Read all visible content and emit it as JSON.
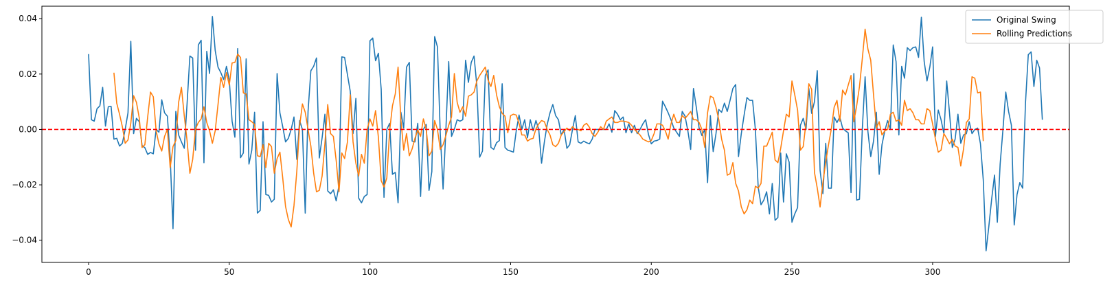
{
  "chart_data": {
    "type": "line",
    "title": "",
    "xlabel": "",
    "ylabel": "",
    "xlim": [
      -16.6,
      348.6
    ],
    "ylim": [
      -0.048,
      0.0445
    ],
    "xticks": [
      0,
      50,
      100,
      150,
      200,
      250,
      300
    ],
    "yticks": [
      -0.04,
      -0.02,
      0.0,
      0.02,
      0.04
    ],
    "ytick_labels": [
      "−0.04",
      "−0.02",
      "0.00",
      "0.02",
      "0.04"
    ],
    "grid": false,
    "legend_position": "top-right",
    "reference_line": {
      "y": 0.0,
      "color": "#ff0000",
      "style": "dashed"
    },
    "series": [
      {
        "name": "Original Swing",
        "color": "#1f77b4",
        "x_start": 0,
        "values": [
          0.0272,
          0.0035,
          0.003,
          0.0075,
          0.0085,
          0.0152,
          0.0012,
          0.0082,
          0.0083,
          -0.0035,
          -0.0032,
          -0.006,
          -0.005,
          0.0,
          0.006,
          0.0318,
          -0.0015,
          0.004,
          0.0028,
          -0.0058,
          -0.0066,
          -0.009,
          -0.0083,
          -0.0088,
          0.0,
          -0.001,
          0.0107,
          0.006,
          0.0048,
          -0.01,
          -0.0358,
          0.0065,
          -0.002,
          -0.0045,
          -0.0068,
          0.0092,
          0.0265,
          0.0258,
          -0.0075,
          0.0305,
          0.0322,
          -0.012,
          0.0282,
          0.0202,
          0.0408,
          0.0285,
          0.0225,
          0.0205,
          0.018,
          0.0228,
          0.0178,
          0.003,
          -0.0028,
          0.0292,
          -0.0102,
          -0.0085,
          0.0255,
          -0.0125,
          -0.0075,
          0.0062,
          -0.0302,
          -0.0292,
          0.0028,
          -0.0235,
          -0.0238,
          -0.0262,
          -0.0252,
          0.0202,
          0.006,
          0.001,
          -0.0045,
          -0.0032,
          0.0,
          0.0045,
          -0.0108,
          0.0032,
          0.0,
          -0.0302,
          0.0065,
          0.0212,
          0.0228,
          0.0258,
          -0.0103,
          -0.003,
          0.0055,
          -0.0222,
          -0.0232,
          -0.0218,
          -0.0258,
          -0.0202,
          0.0262,
          0.026,
          0.0198,
          0.0138,
          -0.0015,
          0.0112,
          -0.0248,
          -0.0265,
          -0.0242,
          -0.0235,
          0.032,
          0.033,
          0.0248,
          0.0275,
          0.0145,
          -0.0245,
          0.0,
          0.0022,
          -0.0162,
          -0.0155,
          -0.0265,
          0.0062,
          0.0005,
          0.0225,
          0.0242,
          -0.0042,
          -0.0045,
          0.0022,
          -0.0242,
          0.0,
          0.0018,
          -0.022,
          -0.0152,
          0.0335,
          0.0298,
          -0.0015,
          -0.0215,
          0.0,
          0.0245,
          -0.0025,
          0.0,
          0.0035,
          0.003,
          0.0035,
          0.025,
          0.017,
          0.0242,
          0.0265,
          0.0158,
          -0.01,
          -0.0078,
          0.0195,
          0.0215,
          -0.0065,
          -0.0072,
          -0.0048,
          -0.004,
          0.0165,
          -0.0065,
          -0.0075,
          -0.0078,
          -0.0082,
          -0.0005,
          0.0052,
          0.0,
          0.0035,
          -0.003,
          0.0035,
          -0.0005,
          0.0032,
          0.0,
          -0.0122,
          -0.0045,
          0.0018,
          0.006,
          0.009,
          0.005,
          0.0035,
          -0.002,
          0.0,
          -0.0068,
          -0.0055,
          0.0,
          0.005,
          -0.0045,
          -0.005,
          -0.0042,
          -0.0048,
          -0.0052,
          -0.0035,
          0.0,
          0.0,
          0.0,
          0.0,
          0.0,
          0.002,
          -0.001,
          0.0068,
          0.0055,
          0.0035,
          0.0045,
          -0.0012,
          0.002,
          -0.0012,
          0.0015,
          -0.0015,
          0.0,
          0.002,
          0.0035,
          -0.0018,
          -0.0052,
          -0.0042,
          -0.004,
          -0.0035,
          0.0102,
          0.0082,
          0.006,
          0.0035,
          0.0005,
          -0.001,
          -0.0025,
          0.0065,
          0.0048,
          -0.0005,
          -0.0072,
          0.0148,
          0.008,
          0.0005,
          -0.0022,
          0.0,
          -0.0192,
          0.005,
          -0.008,
          -0.0015,
          0.0072,
          0.0062,
          0.0095,
          0.0065,
          0.0105,
          0.0148,
          0.0162,
          -0.0098,
          -0.0015,
          0.0052,
          0.0115,
          0.0105,
          0.0105,
          0.0,
          -0.0208,
          -0.0272,
          -0.0255,
          -0.0225,
          -0.0305,
          -0.0195,
          -0.0328,
          -0.0318,
          -0.0085,
          -0.0262,
          -0.0088,
          -0.0118,
          -0.0335,
          -0.0305,
          -0.0282,
          0.0015,
          0.004,
          0.0,
          0.0148,
          0.0058,
          0.01,
          0.0212,
          -0.0148,
          -0.0232,
          -0.005,
          -0.0212,
          -0.0212,
          0.0045,
          0.0025,
          0.0045,
          0.0005,
          -0.0005,
          -0.0012,
          -0.0228,
          0.0202,
          -0.0255,
          -0.0252,
          0.0,
          0.019,
          -0.0008,
          -0.0098,
          -0.0042,
          0.0062,
          -0.0162,
          -0.0055,
          -0.0005,
          0.0032,
          0.0,
          0.0305,
          0.0245,
          -0.002,
          0.0228,
          0.0185,
          0.0295,
          0.0285,
          0.0295,
          0.0298,
          0.026,
          0.0405,
          0.0245,
          0.0175,
          0.0225,
          0.0298,
          -0.0025,
          0.007,
          0.0035,
          -0.0015,
          0.0175,
          0.006,
          -0.0065,
          -0.0035,
          0.0055,
          -0.005,
          -0.002,
          -0.0015,
          0.0028,
          -0.0015,
          0.0,
          0.0005,
          -0.0052,
          -0.0182,
          -0.0438,
          -0.0348,
          -0.025,
          -0.0165,
          -0.0335,
          -0.0125,
          0.0,
          0.0135,
          0.0065,
          0.0015,
          -0.0345,
          -0.0235,
          -0.0192,
          -0.0212,
          0.0095,
          0.027,
          0.028,
          0.0155,
          0.025,
          0.0222,
          0.0035
        ]
      },
      {
        "name": "Rolling Predictions",
        "color": "#ff7f0e",
        "x_start": 9,
        "values": [
          0.0205,
          0.0095,
          0.0055,
          0.001,
          -0.005,
          -0.0038,
          0.0022,
          0.0122,
          0.0098,
          0.0042,
          -0.0065,
          -0.0055,
          0.0045,
          0.0135,
          0.0118,
          -0.0005,
          -0.0052,
          -0.0078,
          -0.0025,
          0.0,
          -0.0138,
          -0.0062,
          -0.004,
          0.0098,
          0.0152,
          0.005,
          -0.004,
          -0.0158,
          -0.0108,
          0.0002,
          0.0025,
          0.0038,
          0.0082,
          0.0025,
          -0.0005,
          -0.005,
          -0.0005,
          0.009,
          0.0188,
          0.0152,
          0.0205,
          0.016,
          0.024,
          0.0242,
          0.0272,
          0.026,
          0.0132,
          0.0128,
          0.0035,
          0.0028,
          0.0018,
          -0.0095,
          -0.0098,
          -0.0055,
          -0.0138,
          -0.005,
          -0.0062,
          -0.0158,
          -0.0105,
          -0.0082,
          -0.0175,
          -0.0278,
          -0.0325,
          -0.0352,
          -0.0275,
          -0.0152,
          0.0012,
          0.0092,
          0.0062,
          0.0,
          -0.006,
          -0.0158,
          -0.0225,
          -0.022,
          -0.0168,
          -0.005,
          0.009,
          -0.0015,
          -0.0025,
          -0.0112,
          -0.0225,
          -0.0085,
          -0.0105,
          -0.0045,
          0.0125,
          -0.0045,
          -0.0122,
          -0.0168,
          -0.009,
          -0.0122,
          0.0,
          0.0038,
          0.0012,
          0.0068,
          -0.0028,
          -0.0185,
          -0.0208,
          -0.0175,
          -0.0005,
          0.0085,
          0.0128,
          0.0225,
          0.0035,
          -0.0075,
          -0.0015,
          -0.0095,
          -0.007,
          -0.0032,
          -0.0002,
          -0.0025,
          0.0038,
          0.0,
          -0.0095,
          -0.0078,
          0.0032,
          0.0,
          -0.0072,
          -0.0055,
          -0.0022,
          0.0015,
          0.0045,
          0.0202,
          0.0098,
          0.0062,
          0.0082,
          0.0048,
          0.012,
          0.0125,
          0.0135,
          0.0175,
          0.0195,
          0.021,
          0.0225,
          0.0178,
          0.0155,
          0.0195,
          0.0125,
          0.0082,
          0.0058,
          0.0048,
          -0.0012,
          0.005,
          0.0055,
          0.0052,
          0.0022,
          -0.002,
          -0.002,
          -0.0042,
          -0.0035,
          -0.0032,
          0.0002,
          0.002,
          0.0032,
          0.0028,
          0.0,
          -0.002,
          -0.0055,
          -0.0062,
          -0.005,
          -0.002,
          -0.0008,
          0.0005,
          -0.0005,
          0.001,
          0.0,
          0.0,
          -0.0005,
          0.0015,
          0.0022,
          0.0008,
          -0.0015,
          -0.0025,
          -0.001,
          0.001,
          0.0,
          0.003,
          0.0038,
          0.0045,
          0.0025,
          0.0025,
          0.003,
          0.003,
          0.0028,
          0.0025,
          0.0015,
          0.0,
          -0.001,
          -0.002,
          -0.0035,
          -0.004,
          -0.0045,
          -0.004,
          -0.0015,
          0.002,
          0.002,
          0.0015,
          -0.0005,
          -0.0035,
          0.002,
          0.0055,
          0.0025,
          0.0025,
          0.005,
          0.004,
          0.0052,
          0.0065,
          0.0035,
          0.0035,
          0.0025,
          0.0,
          -0.0065,
          0.006,
          0.012,
          0.0115,
          0.008,
          0.0035,
          -0.0035,
          -0.0075,
          -0.0165,
          -0.016,
          -0.012,
          -0.0195,
          -0.0222,
          -0.028,
          -0.0305,
          -0.029,
          -0.0255,
          -0.0268,
          -0.0205,
          -0.0212,
          -0.0195,
          -0.006,
          -0.006,
          -0.0035,
          -0.001,
          -0.011,
          -0.012,
          -0.0068,
          -0.0005,
          0.0055,
          0.0045,
          0.0175,
          0.0125,
          0.007,
          -0.0075,
          -0.0062,
          0.0025,
          0.0165,
          0.0145,
          -0.0155,
          -0.0212,
          -0.028,
          -0.0192,
          -0.0118,
          -0.0055,
          0.0002,
          0.008,
          0.0105,
          0.003,
          0.0142,
          0.0125,
          0.016,
          0.0195,
          0.0028,
          0.0085,
          0.0155,
          0.0255,
          0.0362,
          0.029,
          0.025,
          0.0125,
          0.0005,
          0.0028,
          -0.002,
          -0.0005,
          0.0,
          0.0055,
          0.0062,
          0.003,
          0.0035,
          0.0015,
          0.0105,
          0.0068,
          0.0075,
          0.006,
          0.0035,
          0.0035,
          0.002,
          0.002,
          0.0075,
          0.0068,
          0.002,
          -0.0035,
          -0.0082,
          -0.0075,
          -0.0015,
          -0.0032,
          -0.0052,
          -0.0035,
          -0.006,
          -0.0065,
          -0.0132,
          -0.007,
          0.0025,
          0.0038,
          0.019,
          0.0185,
          0.0132,
          0.0135,
          -0.0042
        ]
      }
    ]
  }
}
